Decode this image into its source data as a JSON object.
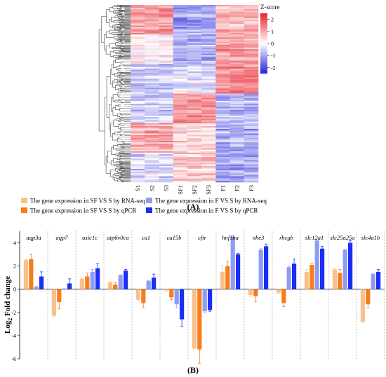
{
  "panel_a_label": "(A)",
  "panel_b_label": "(B)",
  "chart_data": [
    {
      "type": "heatmap",
      "columns": [
        "S1",
        "S2",
        "S3",
        "SF1",
        "SF2",
        "SF3",
        "F1",
        "F2",
        "F3"
      ],
      "colorbar": {
        "title": "Z-score",
        "ticks": [
          2,
          1,
          0,
          -1,
          -2
        ],
        "range": [
          -2.5,
          2.5
        ],
        "low_color": "#2222dd",
        "mid_color": "#ffffff",
        "high_color": "#e8202a"
      },
      "row_dendrogram": true,
      "blocks": [
        {
          "rows": "top",
          "S": 1.2,
          "SF": -1.0,
          "F": 0.8
        },
        {
          "rows": "upper-mid",
          "S": 0.2,
          "SF": -0.8,
          "F": 1.2
        },
        {
          "rows": "mid",
          "S": -0.6,
          "SF": -0.3,
          "F": 1.3
        },
        {
          "rows": "lower-mid",
          "S": -0.5,
          "SF": 1.2,
          "F": -0.8
        },
        {
          "rows": "lower",
          "S": 0.9,
          "SF": 0.3,
          "F": -1.0
        },
        {
          "rows": "bottom",
          "S": -0.4,
          "SF": 0.6,
          "F": -1.0
        }
      ]
    },
    {
      "type": "bar",
      "ylabel_main": "Log",
      "ylabel_sub": "2",
      "ylabel_rest": " Fold change",
      "ylim": [
        -6,
        5
      ],
      "yticks": [
        -6,
        -4,
        -2,
        0,
        2,
        4
      ],
      "legend_position": "top",
      "categories": [
        "aqp3a",
        "aqp7",
        "asic1c",
        "atp6v0ca",
        "ca1",
        "ca15b",
        "cftr",
        "hnf1ba",
        "nhe3",
        "rhcgb",
        "slc12a1",
        "slc25a25a",
        "slc4a1b"
      ],
      "series": [
        {
          "name": "The gene expression in SF VS S by RNA-seq",
          "color": "#f9c08c",
          "values": [
            2.5,
            -2.3,
            0.9,
            0.6,
            -0.9,
            -0.1,
            -5.1,
            1.5,
            -0.5,
            -0.3,
            1.5,
            1.7,
            -2.8
          ],
          "errors": [
            0.05,
            0.1,
            0.1,
            0.05,
            0.05,
            0.05,
            0.05,
            0.5,
            0.1,
            0.1,
            0.2,
            0.05,
            0.05
          ]
        },
        {
          "name": "The gene expression in SF VS S by qPCR",
          "color": "#f57e1a",
          "values": [
            2.6,
            -1.1,
            1.1,
            0.4,
            -1.2,
            -0.7,
            -5.2,
            2.0,
            -0.6,
            -1.2,
            2.1,
            1.4,
            -1.3
          ],
          "errors": [
            0.4,
            0.6,
            0.3,
            0.15,
            0.4,
            0.2,
            1.2,
            0.4,
            0.5,
            0.3,
            0.1,
            0.3,
            0.3
          ]
        },
        {
          "name": "The gene expression in F VS S by RNA-seq",
          "color": "#8f9cf5",
          "values": [
            0.2,
            0.0,
            1.5,
            1.2,
            0.7,
            -1.3,
            -1.9,
            4.5,
            3.4,
            1.9,
            4.2,
            3.4,
            1.3
          ],
          "errors": [
            0.05,
            0.05,
            0.2,
            0.05,
            0.05,
            0.3,
            0.1,
            0.1,
            0.1,
            0.1,
            0.05,
            0.05,
            0.05
          ]
        },
        {
          "name": "The gene expression in F VS S by qPCR",
          "color": "#1a2ef5",
          "values": [
            1.1,
            0.5,
            1.8,
            1.6,
            1.0,
            -2.6,
            -1.8,
            3.0,
            3.7,
            2.2,
            3.5,
            4.0,
            1.5
          ],
          "errors": [
            0.4,
            0.4,
            0.4,
            0.1,
            0.3,
            0.6,
            0.1,
            0.1,
            0.2,
            0.4,
            0.2,
            0.2,
            0.2
          ]
        }
      ]
    }
  ]
}
